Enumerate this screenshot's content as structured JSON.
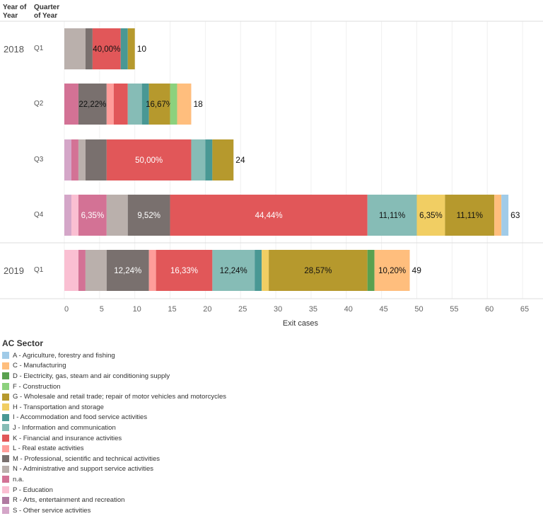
{
  "chart_data": {
    "type": "bar",
    "orientation": "horizontal",
    "stacked": true,
    "row_headers": [
      "Year of Year",
      "Quarter of Year"
    ],
    "xlabel": "Exit cases",
    "xlim": [
      0,
      65
    ],
    "xticks": [
      0,
      5,
      10,
      15,
      20,
      25,
      30,
      35,
      40,
      45,
      50,
      55,
      60,
      65
    ],
    "grid": true,
    "legend_title": "AC Sector",
    "legend_position": "bottom-left",
    "sectors": [
      {
        "key": "A",
        "name": "A - Agriculture, forestry and fishing",
        "color": "#a0cbe8"
      },
      {
        "key": "C",
        "name": "C - Manufacturing",
        "color": "#ffbe7d"
      },
      {
        "key": "D",
        "name": "D - Electricity, gas, steam and air conditioning supply",
        "color": "#59a14f"
      },
      {
        "key": "F",
        "name": "F - Construction",
        "color": "#8cd17d"
      },
      {
        "key": "G",
        "name": "G - Wholesale and retail trade; repair of motor vehicles and motorcycles",
        "color": "#b6992d"
      },
      {
        "key": "H",
        "name": "H - Transportation and storage",
        "color": "#f1ce63"
      },
      {
        "key": "I",
        "name": "I - Accommodation and food service activities",
        "color": "#499894"
      },
      {
        "key": "J",
        "name": "J - Information and communication",
        "color": "#86bcb6"
      },
      {
        "key": "K",
        "name": "K - Financial and insurance activities",
        "color": "#e15759"
      },
      {
        "key": "L",
        "name": "L - Real estate activities",
        "color": "#ff9d9a"
      },
      {
        "key": "M",
        "name": "M - Professional, scientific and technical activities",
        "color": "#79706e"
      },
      {
        "key": "N",
        "name": "N - Administrative and support service activities",
        "color": "#bab0ac"
      },
      {
        "key": "na",
        "name": "n.a.",
        "color": "#d37295"
      },
      {
        "key": "P",
        "name": "P - Education",
        "color": "#fabfd2"
      },
      {
        "key": "R",
        "name": "R - Arts, entertainment and recreation",
        "color": "#b07aa1"
      },
      {
        "key": "S",
        "name": "S - Other service activities",
        "color": "#d4a6c8"
      }
    ],
    "bars": [
      {
        "year": "2018",
        "quarter": "Q1",
        "total": "10",
        "segments": [
          [
            "N",
            3
          ],
          [
            "M",
            1
          ],
          [
            "K",
            4,
            "40,00%"
          ],
          [
            "I",
            1
          ],
          [
            "G",
            1
          ]
        ]
      },
      {
        "year": "",
        "quarter": "Q2",
        "total": "18",
        "segments": [
          [
            "na",
            2
          ],
          [
            "M",
            4,
            "22,22%"
          ],
          [
            "L",
            1
          ],
          [
            "K",
            2
          ],
          [
            "J",
            2
          ],
          [
            "I",
            1
          ],
          [
            "G",
            3,
            "16,67%"
          ],
          [
            "F",
            1
          ],
          [
            "C",
            2
          ]
        ]
      },
      {
        "year": "",
        "quarter": "Q3",
        "total": "24",
        "segments": [
          [
            "S",
            1
          ],
          [
            "na",
            1
          ],
          [
            "N",
            1
          ],
          [
            "M",
            3
          ],
          [
            "K",
            12,
            "50,00%"
          ],
          [
            "J",
            2
          ],
          [
            "I",
            1
          ],
          [
            "G",
            3
          ]
        ]
      },
      {
        "year": "",
        "quarter": "Q4",
        "total": "63",
        "segments": [
          [
            "S",
            1
          ],
          [
            "P",
            1
          ],
          [
            "na",
            4,
            "6,35%"
          ],
          [
            "N",
            3
          ],
          [
            "M",
            6,
            "9,52%"
          ],
          [
            "K",
            28,
            "44,44%"
          ],
          [
            "J",
            7,
            "11,11%"
          ],
          [
            "H",
            4,
            "6,35%"
          ],
          [
            "G",
            7,
            "11,11%"
          ],
          [
            "C",
            1
          ],
          [
            "A",
            1
          ]
        ]
      },
      {
        "year": "2019",
        "quarter": "Q1",
        "total": "49",
        "segments": [
          [
            "P",
            2
          ],
          [
            "na",
            1
          ],
          [
            "N",
            3
          ],
          [
            "M",
            6,
            "12,24%"
          ],
          [
            "L",
            1
          ],
          [
            "K",
            8,
            "16,33%"
          ],
          [
            "J",
            6,
            "12,24%"
          ],
          [
            "I",
            1
          ],
          [
            "H",
            1
          ],
          [
            "G",
            14,
            "28,57%"
          ],
          [
            "D",
            1
          ],
          [
            "C",
            5,
            "10,20%"
          ]
        ]
      }
    ]
  }
}
